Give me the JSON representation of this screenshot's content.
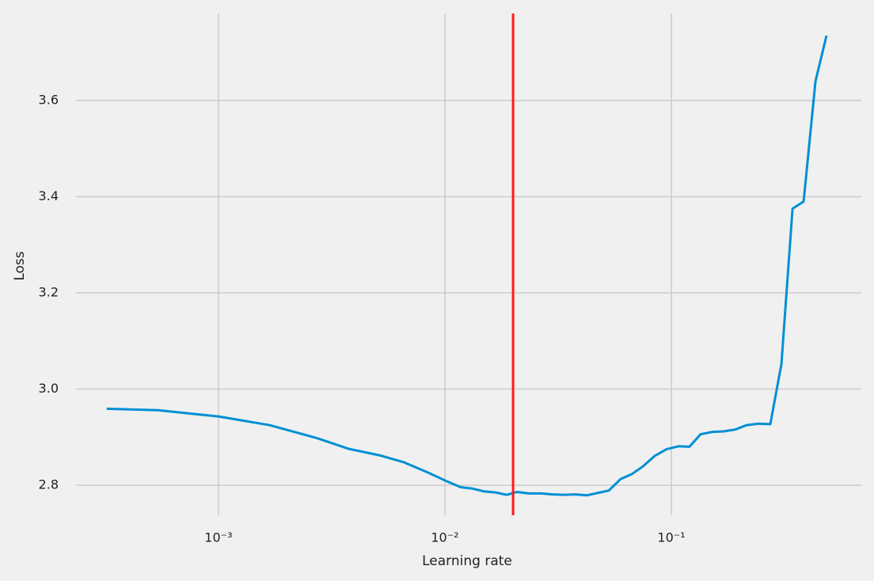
{
  "chart_data": {
    "type": "line",
    "xlabel": "Learning rate",
    "ylabel": "Loss",
    "xscale": "log",
    "grid": true,
    "color": "#008fd5",
    "x": [
      0.000321,
      0.000542,
      0.001,
      0.00168,
      0.00272,
      0.00374,
      0.00517,
      0.00657,
      0.00837,
      0.01,
      0.01175,
      0.01325,
      0.01495,
      0.01675,
      0.01875,
      0.02077,
      0.02349,
      0.02672,
      0.02992,
      0.03345,
      0.03773,
      0.04227,
      0.04732,
      0.05297,
      0.05976,
      0.06683,
      0.07477,
      0.08446,
      0.09531,
      0.1075,
      0.1202,
      0.1346,
      0.152,
      0.1701,
      0.192,
      0.2148,
      0.2426,
      0.2735,
      0.3062,
      0.3428,
      0.3837,
      0.4329,
      0.4844
    ],
    "values": [
      2.959,
      2.956,
      2.943,
      2.925,
      2.898,
      2.876,
      2.862,
      2.848,
      2.827,
      2.81,
      2.796,
      2.793,
      2.787,
      2.785,
      2.78,
      2.786,
      2.783,
      2.783,
      2.781,
      2.78,
      2.781,
      2.779,
      2.784,
      2.789,
      2.813,
      2.823,
      2.839,
      2.861,
      2.875,
      2.881,
      2.88,
      2.906,
      2.911,
      2.912,
      2.916,
      2.925,
      2.928,
      2.927,
      3.052,
      3.375,
      3.39,
      3.64,
      3.735
    ],
    "vline": {
      "x": 0.02,
      "color": "#ff1a1a"
    },
    "xlim": [
      0.000235,
      0.69
    ],
    "ylim": [
      2.7375,
      3.781
    ],
    "xticks": [
      {
        "value": 0.001,
        "label": "10⁻³"
      },
      {
        "value": 0.01,
        "label": "10⁻²"
      },
      {
        "value": 0.1,
        "label": "10⁻¹"
      }
    ],
    "yticks": [
      2.8,
      {
        "value": 3,
        "label": "3.0"
      },
      3.2,
      3.4,
      3.6
    ]
  }
}
